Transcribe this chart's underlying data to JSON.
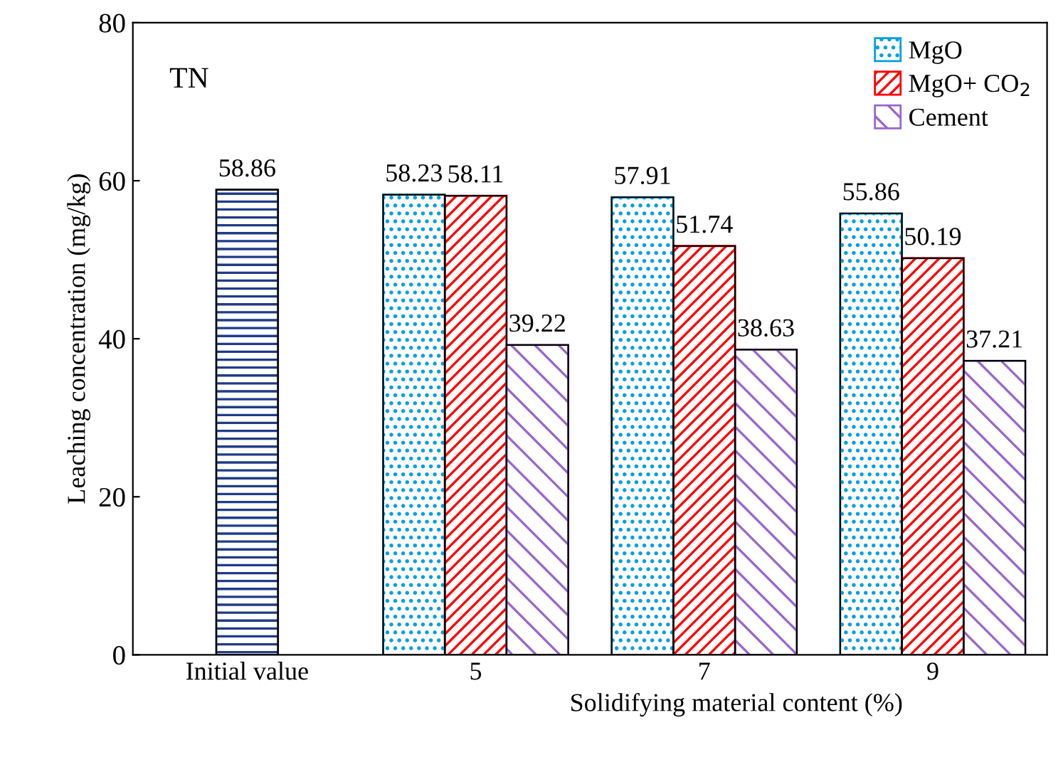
{
  "chart_data": {
    "type": "bar",
    "categories": [
      "Initial value",
      "5",
      "7",
      "9"
    ],
    "xlabel": "Solidifying material content (%)",
    "ylabel": "Leaching concentration (mg/kg)",
    "ylim": [
      0,
      80
    ],
    "yticks": [
      0,
      20,
      40,
      60,
      80
    ],
    "grid": false,
    "legend": "top right",
    "data_labels": true,
    "annotations": [
      "TN"
    ],
    "series": [
      {
        "color": "#1f3c88",
        "values": [
          58.86,
          null,
          null,
          null
        ]
      },
      {
        "name": "MgO",
        "color": "#00a0e0",
        "values": [
          null,
          58.23,
          57.91,
          55.86
        ]
      },
      {
        "name": "MgO+ CO$_{2}$",
        "color": "#ff0000",
        "values": [
          null,
          58.11,
          51.74,
          50.19
        ]
      },
      {
        "name": "Cement",
        "color": "#9966cc",
        "values": [
          null,
          39.22,
          38.63,
          37.21
        ]
      }
    ]
  }
}
